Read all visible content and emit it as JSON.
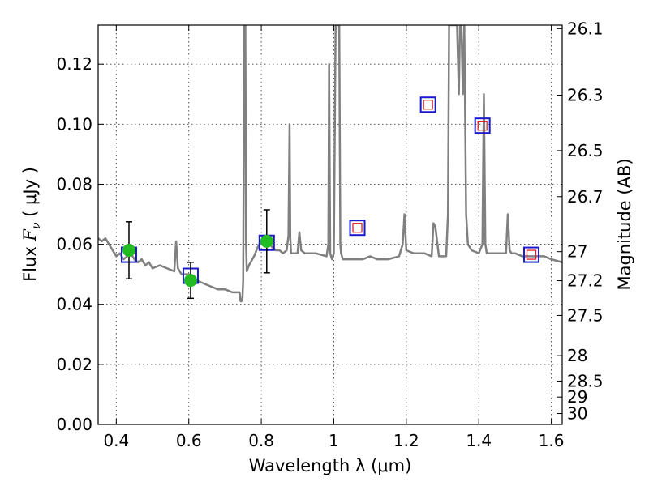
{
  "chart_data": {
    "type": "line",
    "xlabel": "Wavelength  λ (μm)",
    "ylabel": "Flux  F_ν  ( μJy )",
    "ylabel_parts": {
      "pre": "Flux  ",
      "symbol": "F",
      "sub": "ν",
      "post": "  ( μJy )"
    },
    "ylabel_right": "Magnitude (AB)",
    "xlim": [
      0.35,
      1.63
    ],
    "ylim": [
      0.0,
      0.133
    ],
    "grid": true,
    "legend": "none",
    "x_ticks": [
      {
        "value": 0.4,
        "label": "0.4"
      },
      {
        "value": 0.6,
        "label": "0.6"
      },
      {
        "value": 0.8,
        "label": "0.8"
      },
      {
        "value": 1.0,
        "label": "1"
      },
      {
        "value": 1.2,
        "label": "1.2"
      },
      {
        "value": 1.4,
        "label": "1.4"
      },
      {
        "value": 1.6,
        "label": "1.6"
      }
    ],
    "y_ticks": [
      {
        "value": 0.0,
        "label": "0.00"
      },
      {
        "value": 0.02,
        "label": "0.02"
      },
      {
        "value": 0.04,
        "label": "0.04"
      },
      {
        "value": 0.06,
        "label": "0.06"
      },
      {
        "value": 0.08,
        "label": "0.08"
      },
      {
        "value": 0.1,
        "label": "0.10"
      },
      {
        "value": 0.12,
        "label": "0.12"
      }
    ],
    "right_ticks": [
      {
        "mag": 26.1,
        "label": "26.1"
      },
      {
        "mag": 26.3,
        "label": "26.3"
      },
      {
        "mag": 26.5,
        "label": "26.5"
      },
      {
        "mag": 26.7,
        "label": "26.7"
      },
      {
        "mag": 27.0,
        "label": "27"
      },
      {
        "mag": 27.2,
        "label": "27.2"
      },
      {
        "mag": 27.5,
        "label": "27.5"
      },
      {
        "mag": 28.0,
        "label": "28"
      },
      {
        "mag": 28.5,
        "label": "28.5"
      },
      {
        "mag": 29.0,
        "label": "29"
      },
      {
        "mag": 30.0,
        "label": "30"
      }
    ],
    "colors": {
      "spectrum": "#808080",
      "observed": "#22bb22",
      "model_box": "#1a1acc",
      "upper_box": "#dd2222",
      "errorbar": "#000000"
    },
    "series": [
      {
        "kind": "spectrum",
        "x": [
          0.35,
          0.36,
          0.37,
          0.38,
          0.39,
          0.4,
          0.41,
          0.42,
          0.43,
          0.44,
          0.45,
          0.46,
          0.47,
          0.48,
          0.49,
          0.5,
          0.52,
          0.54,
          0.56,
          0.565,
          0.57,
          0.575,
          0.58,
          0.6,
          0.62,
          0.64,
          0.66,
          0.68,
          0.7,
          0.72,
          0.74,
          0.743,
          0.745,
          0.748,
          0.75,
          0.753,
          0.756,
          0.758,
          0.76,
          0.763,
          0.766,
          0.78,
          0.79,
          0.8,
          0.81,
          0.82,
          0.83,
          0.84,
          0.85,
          0.86,
          0.87,
          0.875,
          0.878,
          0.88,
          0.882,
          0.885,
          0.9,
          0.905,
          0.91,
          0.92,
          0.95,
          0.98,
          0.985,
          0.987,
          0.99,
          0.995,
          1.0,
          1.005,
          1.008,
          1.012,
          1.015,
          1.018,
          1.02,
          1.025,
          1.05,
          1.08,
          1.1,
          1.12,
          1.15,
          1.18,
          1.19,
          1.195,
          1.2,
          1.22,
          1.25,
          1.27,
          1.275,
          1.28,
          1.29,
          1.31,
          1.315,
          1.318,
          1.322,
          1.33,
          1.34,
          1.345,
          1.348,
          1.352,
          1.356,
          1.36,
          1.365,
          1.37,
          1.38,
          1.4,
          1.41,
          1.414,
          1.418,
          1.422,
          1.43,
          1.45,
          1.475,
          1.48,
          1.485,
          1.49,
          1.5,
          1.52,
          1.55,
          1.58,
          1.6,
          1.63
        ],
        "y": [
          0.062,
          0.061,
          0.062,
          0.06,
          0.058,
          0.056,
          0.057,
          0.055,
          0.056,
          0.057,
          0.055,
          0.054,
          0.055,
          0.053,
          0.054,
          0.052,
          0.053,
          0.052,
          0.051,
          0.061,
          0.052,
          0.051,
          0.05,
          0.05,
          0.048,
          0.047,
          0.046,
          0.045,
          0.045,
          0.044,
          0.044,
          0.041,
          0.041,
          0.042,
          0.048,
          0.133,
          0.133,
          0.06,
          0.051,
          0.052,
          0.053,
          0.056,
          0.059,
          0.061,
          0.062,
          0.061,
          0.059,
          0.058,
          0.058,
          0.057,
          0.058,
          0.063,
          0.1,
          0.062,
          0.057,
          0.057,
          0.057,
          0.064,
          0.058,
          0.057,
          0.057,
          0.056,
          0.06,
          0.12,
          0.057,
          0.055,
          0.057,
          0.133,
          0.133,
          0.133,
          0.133,
          0.06,
          0.057,
          0.055,
          0.055,
          0.055,
          0.056,
          0.055,
          0.055,
          0.056,
          0.06,
          0.07,
          0.058,
          0.057,
          0.057,
          0.056,
          0.067,
          0.066,
          0.056,
          0.056,
          0.07,
          0.133,
          0.133,
          0.133,
          0.133,
          0.11,
          0.133,
          0.133,
          0.11,
          0.133,
          0.07,
          0.06,
          0.058,
          0.057,
          0.06,
          0.11,
          0.06,
          0.057,
          0.057,
          0.057,
          0.057,
          0.07,
          0.058,
          0.057,
          0.057,
          0.056,
          0.056,
          0.056,
          0.055,
          0.054
        ]
      },
      {
        "kind": "model_boxes",
        "x": [
          0.435,
          0.605,
          0.815,
          1.065,
          1.26,
          1.41,
          1.545
        ],
        "y": [
          0.0565,
          0.0495,
          0.0605,
          0.0655,
          0.1065,
          0.0995,
          0.0565
        ]
      },
      {
        "kind": "upper_limit_boxes",
        "x": [
          1.065,
          1.26,
          1.41,
          1.545
        ],
        "y": [
          0.0655,
          0.1065,
          0.0995,
          0.0565
        ]
      },
      {
        "kind": "observed",
        "x": [
          0.435,
          0.605,
          0.815
        ],
        "y": [
          0.058,
          0.048,
          0.061
        ],
        "yerr_low": [
          0.0095,
          0.006,
          0.0105
        ],
        "yerr_high": [
          0.0095,
          0.006,
          0.0105
        ]
      }
    ]
  }
}
